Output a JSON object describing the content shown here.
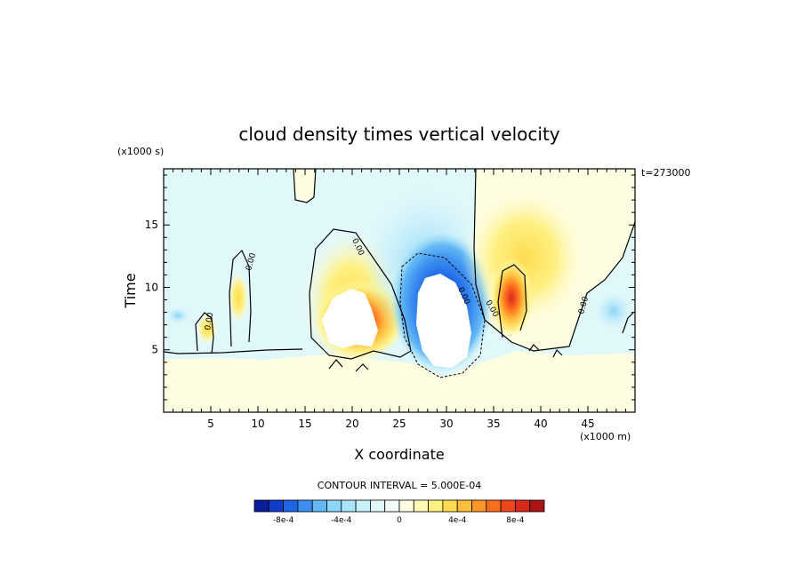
{
  "chart_data": {
    "type": "heatmap",
    "title": "cloud density times vertical velocity",
    "xlabel": "X coordinate",
    "ylabel": "Time",
    "x_scale_label": "(x1000 m)",
    "y_scale_label": "(x1000 s)",
    "time_label": "t=273000",
    "xlim": [
      0,
      50
    ],
    "ylim": [
      0,
      19.5
    ],
    "x_ticks": [
      "5",
      "10",
      "15",
      "20",
      "25",
      "30",
      "35",
      "40",
      "45"
    ],
    "y_ticks": [
      "5",
      "10",
      "15"
    ],
    "contour_interval_label": "CONTOUR INTERVAL = 5.000E-04",
    "zero_contour_label": "0.00",
    "colorbar": {
      "ticks": [
        "-8e-4",
        "-4e-4",
        "0",
        "4e-4",
        "8e-4"
      ],
      "levels": [
        -0.001,
        -0.0009,
        -0.0008,
        -0.0007,
        -0.0006,
        -0.0005,
        -0.0004,
        -0.0003,
        -0.0002,
        -0.0001,
        0,
        0.0001,
        0.0002,
        0.0003,
        0.0004,
        0.0005,
        0.0006,
        0.0007,
        0.0008,
        0.0009,
        0.001
      ],
      "colors": [
        "#0a1c9a",
        "#0f3cc8",
        "#1e64e6",
        "#3c8ff0",
        "#64b9f5",
        "#8cd7f8",
        "#aae6fa",
        "#c8f0fa",
        "#e1f8fa",
        "#f0fbfa",
        "#fffde1",
        "#fffab4",
        "#fff082",
        "#ffdc50",
        "#ffbe3c",
        "#ff9628",
        "#ff6e1e",
        "#f0461e",
        "#d7281e",
        "#aa1414"
      ]
    },
    "features": [
      {
        "kind": "cloud-base",
        "region": "y < ~4.5",
        "value": 0
      },
      {
        "kind": "updraft",
        "center": [
          21,
          7.5
        ],
        "peak": 0.0009
      },
      {
        "kind": "downdraft",
        "center": [
          29.5,
          9.5
        ],
        "peak": -0.0009
      },
      {
        "kind": "updraft",
        "center": [
          36.8,
          10
        ],
        "peak": 0.0009
      },
      {
        "kind": "cloud-free hole",
        "centers": [
          [
            20.5,
            7.2
          ],
          [
            29.5,
            8.2
          ]
        ]
      }
    ]
  }
}
